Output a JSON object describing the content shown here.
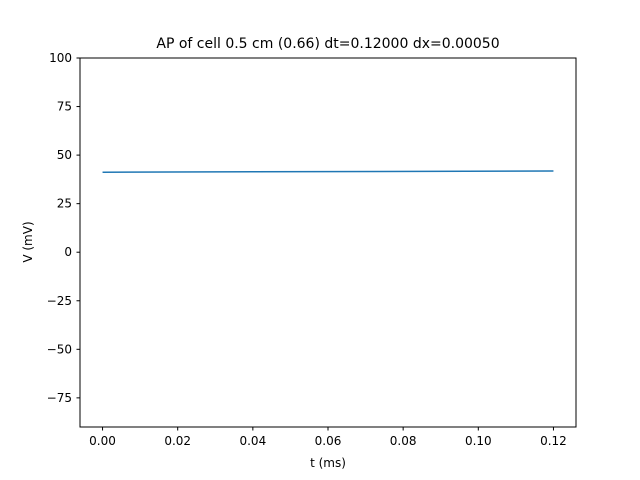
{
  "chart_data": {
    "type": "line",
    "title": "AP of cell 0.5 cm (0.66) dt=0.12000 dx=0.00050",
    "xlabel": "t (ms)",
    "ylabel": "V (mV)",
    "xlim": [
      -0.006,
      0.126
    ],
    "ylim": [
      -90,
      100
    ],
    "xticks": [
      0.0,
      0.02,
      0.04,
      0.06,
      0.08,
      0.1,
      0.12
    ],
    "xtick_labels": [
      "0.00",
      "0.02",
      "0.04",
      "0.06",
      "0.08",
      "0.10",
      "0.12"
    ],
    "yticks": [
      -75,
      -50,
      -25,
      0,
      25,
      50,
      75,
      100
    ],
    "ytick_labels": [
      "−75",
      "−50",
      "−25",
      "0",
      "25",
      "50",
      "75",
      "100"
    ],
    "grid": false,
    "series": [
      {
        "color": "#1f77b4",
        "x": [
          0.0,
          0.12
        ],
        "y": [
          41.2,
          41.8
        ]
      }
    ]
  }
}
